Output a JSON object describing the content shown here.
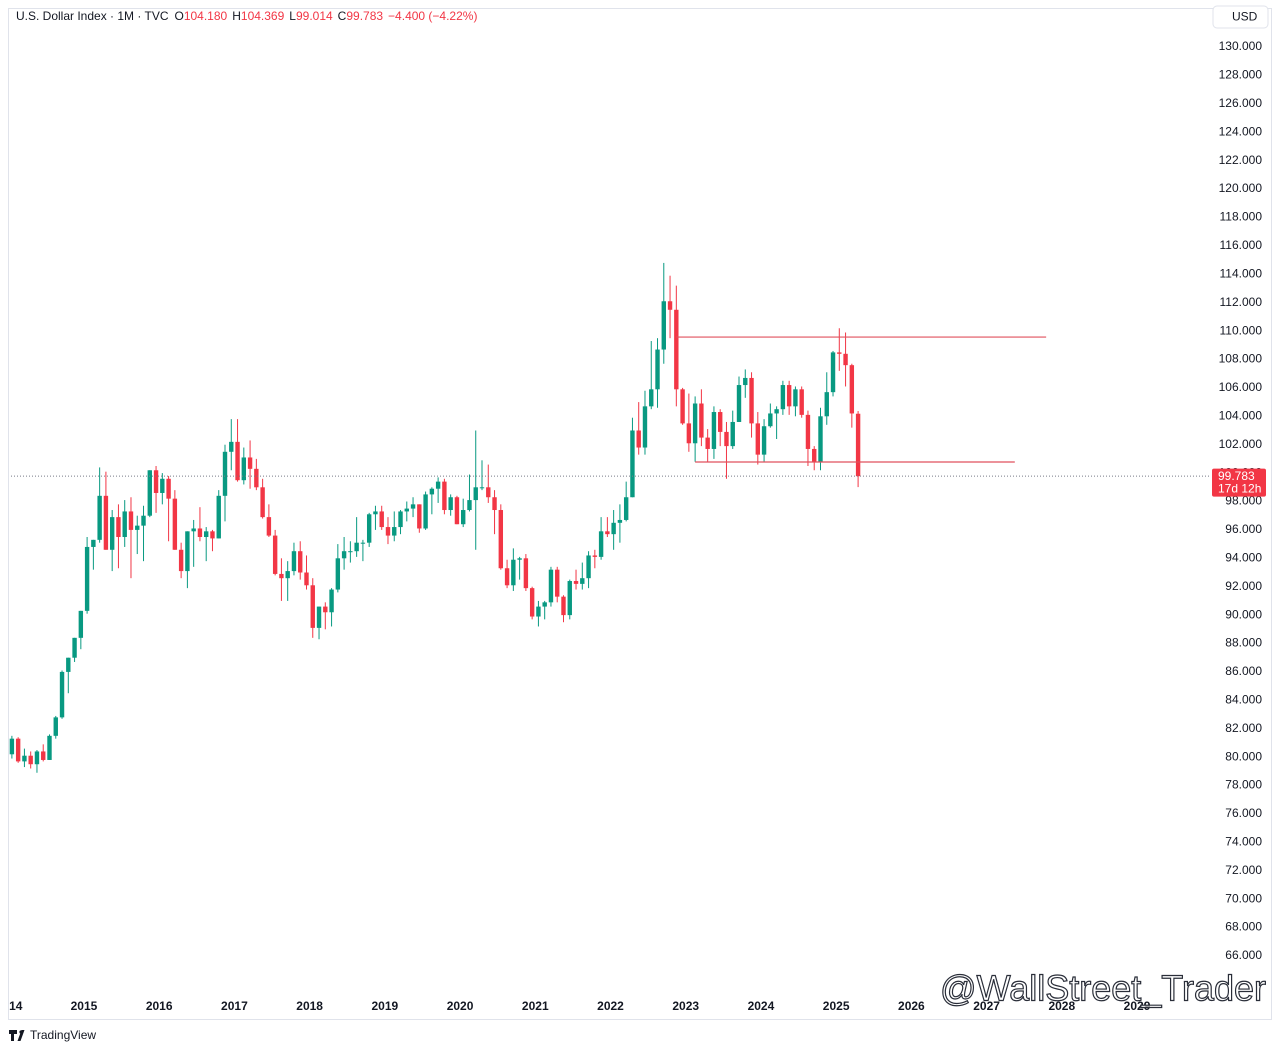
{
  "chart_data": {
    "type": "candlestick",
    "title": "U.S. Dollar Index · 1M · TVC",
    "currency": "USD",
    "header_items": [
      {
        "key": "O",
        "label": "104.180"
      },
      {
        "key": "H",
        "label": "104.369"
      },
      {
        "key": "L",
        "label": "99.014"
      },
      {
        "key": "C",
        "label": "99.783"
      }
    ],
    "change_label": "−4.400 (−4.22%)",
    "countdown": "17d 12h",
    "brand": "TradingView",
    "watermark": "@WallStreet_Trader",
    "up_color": "#089981",
    "down_color": "#f23645",
    "grid": false,
    "x": [
      "2014-01",
      "2014-02",
      "2014-03",
      "2014-04",
      "2014-05",
      "2014-06",
      "2014-07",
      "2014-08",
      "2014-09",
      "2014-10",
      "2014-11",
      "2014-12",
      "2015-01",
      "2015-02",
      "2015-03",
      "2015-04",
      "2015-05",
      "2015-06",
      "2015-07",
      "2015-08",
      "2015-09",
      "2015-10",
      "2015-11",
      "2015-12",
      "2016-01",
      "2016-02",
      "2016-03",
      "2016-04",
      "2016-05",
      "2016-06",
      "2016-07",
      "2016-08",
      "2016-09",
      "2016-10",
      "2016-11",
      "2016-12",
      "2017-01",
      "2017-02",
      "2017-03",
      "2017-04",
      "2017-05",
      "2017-06",
      "2017-07",
      "2017-08",
      "2017-09",
      "2017-10",
      "2017-11",
      "2017-12",
      "2018-01",
      "2018-02",
      "2018-03",
      "2018-04",
      "2018-05",
      "2018-06",
      "2018-07",
      "2018-08",
      "2018-09",
      "2018-10",
      "2018-11",
      "2018-12",
      "2019-01",
      "2019-02",
      "2019-03",
      "2019-04",
      "2019-05",
      "2019-06",
      "2019-07",
      "2019-08",
      "2019-09",
      "2019-10",
      "2019-11",
      "2019-12",
      "2020-01",
      "2020-02",
      "2020-03",
      "2020-04",
      "2020-05",
      "2020-06",
      "2020-07",
      "2020-08",
      "2020-09",
      "2020-10",
      "2020-11",
      "2020-12",
      "2021-01",
      "2021-02",
      "2021-03",
      "2021-04",
      "2021-05",
      "2021-06",
      "2021-07",
      "2021-08",
      "2021-09",
      "2021-10",
      "2021-11",
      "2021-12",
      "2022-01",
      "2022-02",
      "2022-03",
      "2022-04",
      "2022-05",
      "2022-06",
      "2022-07",
      "2022-08",
      "2022-09",
      "2022-10",
      "2022-11",
      "2022-12",
      "2023-01",
      "2023-02",
      "2023-03",
      "2023-04",
      "2023-05",
      "2023-06",
      "2023-07",
      "2023-08",
      "2023-09",
      "2023-10",
      "2023-11",
      "2023-12",
      "2024-01",
      "2024-02",
      "2024-03",
      "2024-04",
      "2024-05",
      "2024-06",
      "2024-07",
      "2024-08",
      "2024-09",
      "2024-10",
      "2024-11",
      "2024-12",
      "2025-01",
      "2025-02",
      "2025-03",
      "2025-04"
    ],
    "open": [
      80.2,
      81.3,
      79.7,
      80.1,
      79.5,
      80.4,
      79.8,
      81.5,
      82.8,
      86.0,
      87.0,
      88.4,
      90.3,
      94.8,
      95.3,
      98.4,
      94.6,
      96.9,
      95.5,
      97.3,
      96.0,
      96.3,
      97.0,
      100.2,
      98.6,
      99.6,
      98.2,
      94.6,
      93.1,
      95.9,
      96.1,
      95.5,
      95.9,
      95.4,
      98.4,
      101.5,
      102.2,
      99.5,
      101.1,
      100.3,
      99.0,
      96.9,
      95.6,
      92.9,
      92.6,
      93.1,
      94.5,
      93.0,
      92.1,
      89.1,
      90.6,
      90.2,
      91.8,
      94.0,
      94.5,
      94.5,
      95.1,
      95.1,
      97.1,
      97.3,
      96.2,
      95.6,
      96.2,
      97.3,
      97.5,
      97.8,
      96.1,
      98.5,
      98.9,
      99.4,
      97.4,
      98.3,
      96.4,
      97.4,
      98.1,
      99.0,
      99.0,
      98.3,
      97.4,
      93.3,
      92.1,
      93.9,
      94.0,
      91.9,
      89.9,
      90.6,
      90.9,
      93.2,
      91.3,
      90.0,
      92.4,
      92.2,
      92.6,
      94.2,
      94.1,
      95.9,
      95.7,
      96.5,
      96.7,
      98.3,
      103.0,
      101.8,
      104.7,
      105.9,
      108.7,
      112.1,
      111.5,
      105.9,
      103.5,
      102.1,
      104.9,
      102.5,
      101.7,
      104.3,
      102.9,
      101.9,
      103.6,
      106.2,
      106.7,
      103.5,
      101.3,
      103.3,
      104.2,
      104.5,
      106.2,
      104.7,
      105.9,
      104.1,
      101.7,
      100.8,
      104.0,
      105.7,
      108.5,
      108.4,
      107.6,
      104.18
    ],
    "high": [
      81.5,
      81.4,
      80.6,
      80.4,
      80.5,
      80.9,
      81.6,
      82.9,
      86.1,
      87.0,
      88.4,
      90.3,
      95.5,
      95.3,
      100.4,
      100.1,
      97.4,
      97.8,
      98.1,
      98.3,
      97.0,
      97.7,
      100.2,
      100.5,
      100.0,
      99.8,
      98.8,
      95.1,
      95.9,
      96.7,
      97.6,
      96.2,
      96.0,
      98.8,
      102.0,
      103.8,
      103.8,
      101.8,
      102.3,
      101.0,
      99.6,
      97.8,
      96.0,
      94.0,
      93.8,
      95.1,
      95.2,
      94.2,
      92.6,
      90.6,
      90.9,
      91.9,
      95.0,
      95.5,
      95.2,
      96.9,
      95.3,
      97.2,
      97.7,
      97.7,
      96.9,
      97.3,
      97.4,
      98.0,
      98.3,
      97.8,
      98.7,
      99.0,
      99.7,
      99.6,
      98.5,
      98.4,
      98.2,
      99.9,
      103.0,
      100.9,
      100.6,
      98.8,
      97.8,
      93.9,
      94.7,
      94.1,
      94.3,
      92.0,
      91.0,
      91.0,
      93.4,
      93.4,
      91.4,
      92.5,
      93.2,
      93.7,
      94.5,
      94.6,
      96.9,
      96.9,
      97.4,
      97.8,
      99.4,
      103.9,
      105.0,
      105.8,
      109.3,
      109.5,
      114.8,
      113.9,
      113.2,
      106.0,
      105.6,
      105.4,
      105.9,
      103.1,
      104.7,
      104.5,
      103.6,
      104.4,
      106.8,
      107.3,
      107.1,
      104.3,
      103.8,
      104.9,
      104.7,
      106.5,
      106.5,
      106.1,
      106.1,
      104.4,
      101.9,
      104.6,
      107.1,
      108.6,
      110.2,
      109.9,
      107.7,
      104.369
    ],
    "low": [
      79.9,
      79.6,
      79.3,
      79.2,
      78.9,
      79.7,
      79.8,
      81.3,
      82.7,
      84.5,
      86.7,
      87.6,
      90.1,
      93.2,
      95.1,
      94.6,
      93.1,
      93.3,
      94.8,
      92.6,
      94.3,
      93.8,
      96.9,
      97.2,
      97.8,
      95.2,
      94.6,
      92.6,
      91.9,
      93.4,
      95.2,
      93.8,
      94.5,
      95.4,
      96.6,
      100.2,
      99.4,
      99.2,
      98.9,
      98.8,
      96.8,
      95.5,
      92.8,
      91.0,
      91.0,
      92.8,
      92.5,
      91.8,
      88.4,
      88.3,
      89.0,
      89.2,
      91.6,
      93.2,
      93.7,
      94.1,
      93.8,
      94.8,
      96.0,
      96.0,
      95.0,
      95.2,
      95.7,
      96.6,
      96.9,
      95.8,
      96.0,
      97.1,
      97.9,
      97.1,
      97.0,
      96.4,
      96.2,
      97.3,
      94.6,
      98.8,
      97.9,
      95.7,
      93.2,
      91.9,
      91.7,
      92.5,
      91.7,
      89.7,
      89.2,
      89.7,
      90.6,
      90.9,
      89.5,
      89.7,
      91.8,
      91.8,
      91.9,
      93.3,
      93.9,
      95.5,
      94.6,
      95.1,
      96.6,
      98.3,
      101.3,
      101.3,
      104.5,
      104.6,
      107.7,
      109.5,
      104.7,
      103.4,
      101.5,
      100.8,
      101.9,
      100.8,
      101.0,
      101.9,
      99.6,
      101.7,
      103.6,
      105.3,
      102.5,
      100.6,
      100.8,
      103.2,
      102.4,
      104.1,
      104.1,
      104.0,
      103.9,
      100.5,
      100.2,
      100.2,
      103.4,
      105.4,
      107.2,
      106.1,
      103.2,
      99.014
    ],
    "close": [
      81.3,
      79.7,
      80.1,
      79.5,
      80.4,
      79.8,
      81.5,
      82.8,
      86.0,
      87.0,
      88.4,
      90.3,
      94.8,
      95.3,
      98.4,
      94.6,
      96.9,
      95.5,
      97.3,
      96.0,
      96.3,
      97.0,
      100.2,
      98.6,
      99.6,
      98.2,
      94.6,
      93.1,
      95.9,
      96.1,
      95.5,
      95.9,
      95.4,
      98.4,
      101.5,
      102.2,
      99.5,
      101.1,
      100.3,
      99.0,
      96.9,
      95.6,
      92.9,
      92.6,
      93.1,
      94.5,
      93.0,
      92.1,
      89.1,
      90.6,
      90.2,
      91.8,
      94.0,
      94.5,
      94.5,
      95.1,
      95.1,
      97.1,
      97.3,
      96.2,
      95.6,
      96.2,
      97.3,
      97.5,
      97.8,
      96.1,
      98.5,
      98.9,
      99.4,
      97.4,
      98.3,
      96.4,
      97.4,
      98.1,
      99.0,
      99.0,
      98.3,
      97.4,
      93.3,
      92.1,
      93.9,
      94.0,
      91.9,
      89.9,
      90.6,
      90.9,
      93.2,
      91.3,
      90.0,
      92.4,
      92.2,
      92.6,
      94.2,
      94.1,
      95.9,
      95.7,
      96.5,
      96.7,
      98.3,
      103.0,
      101.8,
      104.7,
      105.9,
      108.7,
      112.1,
      111.5,
      105.9,
      103.5,
      102.1,
      104.9,
      102.5,
      101.7,
      104.3,
      102.9,
      101.9,
      103.6,
      106.2,
      106.7,
      103.5,
      101.3,
      103.3,
      104.2,
      104.5,
      106.2,
      104.7,
      105.9,
      104.1,
      101.7,
      100.8,
      104.0,
      105.7,
      108.5,
      108.4,
      107.6,
      104.2,
      99.783
    ],
    "close_label": "99.783",
    "drawings": [
      {
        "value": 109.58,
        "from": "2022-11",
        "to": "2027-10",
        "color": "#e0525d"
      },
      {
        "value": 100.78,
        "from": "2023-02",
        "to": "2027-05",
        "color": "#e0525d"
      }
    ],
    "xlim": [
      2013.99,
      2029.97
    ],
    "xticks": [
      {
        "value": 2014,
        "label": "14"
      },
      2015,
      2016,
      2017,
      2018,
      2019,
      2020,
      2021,
      2022,
      2023,
      2024,
      2025,
      2026,
      2027,
      2028,
      2029
    ],
    "ylim": [
      63.25,
      132.75
    ],
    "yticks": [
      {
        "value": 66,
        "label": "66.000"
      },
      {
        "value": 68,
        "label": "68.000"
      },
      {
        "value": 70,
        "label": "70.000"
      },
      {
        "value": 72,
        "label": "72.000"
      },
      {
        "value": 74,
        "label": "74.000"
      },
      {
        "value": 76,
        "label": "76.000"
      },
      {
        "value": 78,
        "label": "78.000"
      },
      {
        "value": 80,
        "label": "80.000"
      },
      {
        "value": 82,
        "label": "82.000"
      },
      {
        "value": 84,
        "label": "84.000"
      },
      {
        "value": 86,
        "label": "86.000"
      },
      {
        "value": 88,
        "label": "88.000"
      },
      {
        "value": 90,
        "label": "90.000"
      },
      {
        "value": 92,
        "label": "92.000"
      },
      {
        "value": 94,
        "label": "94.000"
      },
      {
        "value": 96,
        "label": "96.000"
      },
      {
        "value": 98,
        "label": "98.000"
      },
      {
        "value": 100,
        "label": "100.000"
      },
      {
        "value": 102,
        "label": "102.000"
      },
      {
        "value": 104,
        "label": "104.000"
      },
      {
        "value": 106,
        "label": "106.000"
      },
      {
        "value": 108,
        "label": "108.000"
      },
      {
        "value": 110,
        "label": "110.000"
      },
      {
        "value": 112,
        "label": "112.000"
      },
      {
        "value": 114,
        "label": "114.000"
      },
      {
        "value": 116,
        "label": "116.000"
      },
      {
        "value": 118,
        "label": "118.000"
      },
      {
        "value": 120,
        "label": "120.000"
      },
      {
        "value": 122,
        "label": "122.000"
      },
      {
        "value": 124,
        "label": "124.000"
      },
      {
        "value": 126,
        "label": "126.000"
      },
      {
        "value": 128,
        "label": "128.000"
      },
      {
        "value": 130,
        "label": "130.000"
      }
    ]
  }
}
